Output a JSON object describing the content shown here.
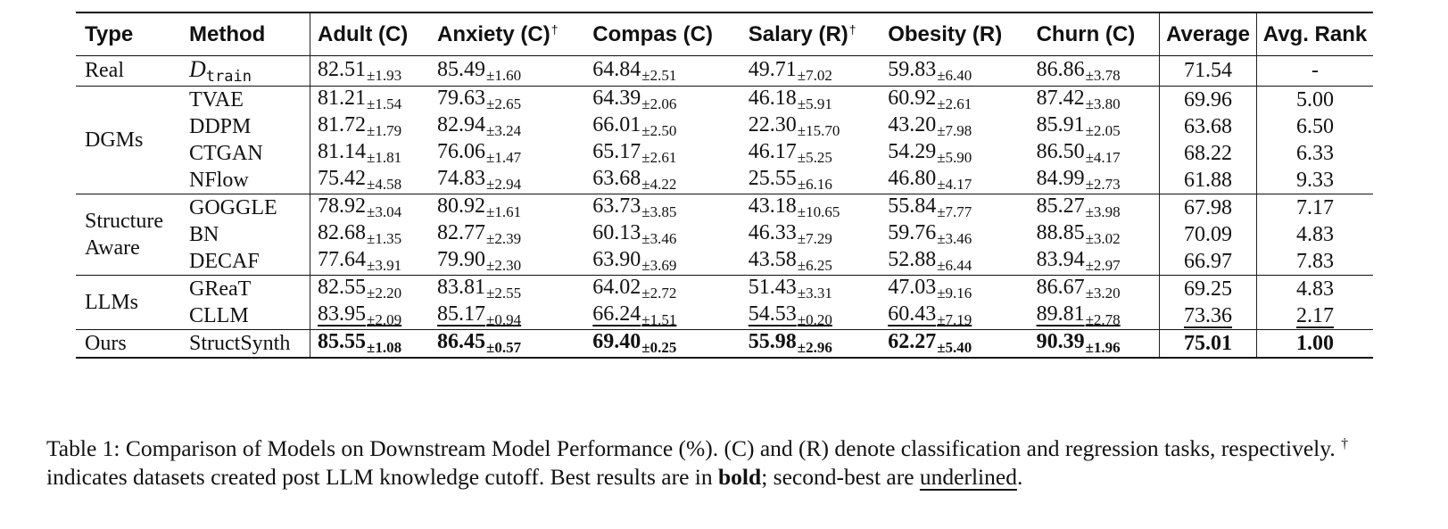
{
  "table": {
    "headers": {
      "type": "Type",
      "method": "Method",
      "datasets": [
        {
          "label": "Adult (C)",
          "dagger": ""
        },
        {
          "label": "Anxiety (C)",
          "dagger": "†"
        },
        {
          "label": "Compas (C)",
          "dagger": ""
        },
        {
          "label": "Salary (R)",
          "dagger": "†"
        },
        {
          "label": "Obesity (R)",
          "dagger": ""
        },
        {
          "label": "Churn (C)",
          "dagger": ""
        }
      ],
      "average": "Average",
      "avg_rank": "Avg. Rank"
    },
    "groups": [
      {
        "type": "Real",
        "rows": [
          {
            "method": "D",
            "method_sub": "train",
            "scores": [
              {
                "v": "82.51",
                "sd": "±1.93"
              },
              {
                "v": "85.49",
                "sd": "±1.60"
              },
              {
                "v": "64.84",
                "sd": "±2.51"
              },
              {
                "v": "49.71",
                "sd": "±7.02"
              },
              {
                "v": "59.83",
                "sd": "±6.40"
              },
              {
                "v": "86.86",
                "sd": "±3.78"
              }
            ],
            "average": "71.54",
            "rank": "-"
          }
        ]
      },
      {
        "type": "DGMs",
        "rows": [
          {
            "method": "TVAE",
            "scores": [
              {
                "v": "81.21",
                "sd": "±1.54"
              },
              {
                "v": "79.63",
                "sd": "±2.65"
              },
              {
                "v": "64.39",
                "sd": "±2.06"
              },
              {
                "v": "46.18",
                "sd": "±5.91"
              },
              {
                "v": "60.92",
                "sd": "±2.61"
              },
              {
                "v": "87.42",
                "sd": "±3.80"
              }
            ],
            "average": "69.96",
            "rank": "5.00"
          },
          {
            "method": "DDPM",
            "scores": [
              {
                "v": "81.72",
                "sd": "±1.79"
              },
              {
                "v": "82.94",
                "sd": "±3.24"
              },
              {
                "v": "66.01",
                "sd": "±2.50"
              },
              {
                "v": "22.30",
                "sd": "±15.70"
              },
              {
                "v": "43.20",
                "sd": "±7.98"
              },
              {
                "v": "85.91",
                "sd": "±2.05"
              }
            ],
            "average": "63.68",
            "rank": "6.50"
          },
          {
            "method": "CTGAN",
            "scores": [
              {
                "v": "81.14",
                "sd": "±1.81"
              },
              {
                "v": "76.06",
                "sd": "±1.47"
              },
              {
                "v": "65.17",
                "sd": "±2.61"
              },
              {
                "v": "46.17",
                "sd": "±5.25"
              },
              {
                "v": "54.29",
                "sd": "±5.90"
              },
              {
                "v": "86.50",
                "sd": "±4.17"
              }
            ],
            "average": "68.22",
            "rank": "6.33"
          },
          {
            "method": "NFlow",
            "scores": [
              {
                "v": "75.42",
                "sd": "±4.58"
              },
              {
                "v": "74.83",
                "sd": "±2.94"
              },
              {
                "v": "63.68",
                "sd": "±4.22"
              },
              {
                "v": "25.55",
                "sd": "±6.16"
              },
              {
                "v": "46.80",
                "sd": "±4.17"
              },
              {
                "v": "84.99",
                "sd": "±2.73"
              }
            ],
            "average": "61.88",
            "rank": "9.33"
          }
        ]
      },
      {
        "type": "Structure Aware",
        "type_lines": [
          "Structure",
          "Aware"
        ],
        "rows": [
          {
            "method": "GOGGLE",
            "scores": [
              {
                "v": "78.92",
                "sd": "±3.04"
              },
              {
                "v": "80.92",
                "sd": "±1.61"
              },
              {
                "v": "63.73",
                "sd": "±3.85"
              },
              {
                "v": "43.18",
                "sd": "±10.65"
              },
              {
                "v": "55.84",
                "sd": "±7.77"
              },
              {
                "v": "85.27",
                "sd": "±3.98"
              }
            ],
            "average": "67.98",
            "rank": "7.17"
          },
          {
            "method": "BN",
            "scores": [
              {
                "v": "82.68",
                "sd": "±1.35"
              },
              {
                "v": "82.77",
                "sd": "±2.39"
              },
              {
                "v": "60.13",
                "sd": "±3.46"
              },
              {
                "v": "46.33",
                "sd": "±7.29"
              },
              {
                "v": "59.76",
                "sd": "±3.46"
              },
              {
                "v": "88.85",
                "sd": "±3.02"
              }
            ],
            "average": "70.09",
            "rank": "4.83"
          },
          {
            "method": "DECAF",
            "scores": [
              {
                "v": "77.64",
                "sd": "±3.91"
              },
              {
                "v": "79.90",
                "sd": "±2.30"
              },
              {
                "v": "63.90",
                "sd": "±3.69"
              },
              {
                "v": "43.58",
                "sd": "±6.25"
              },
              {
                "v": "52.88",
                "sd": "±6.44"
              },
              {
                "v": "83.94",
                "sd": "±2.97"
              }
            ],
            "average": "66.97",
            "rank": "7.83"
          }
        ]
      },
      {
        "type": "LLMs",
        "rows": [
          {
            "method": "GReaT",
            "scores": [
              {
                "v": "82.55",
                "sd": "±2.20"
              },
              {
                "v": "83.81",
                "sd": "±2.55"
              },
              {
                "v": "64.02",
                "sd": "±2.72"
              },
              {
                "v": "51.43",
                "sd": "±3.31"
              },
              {
                "v": "47.03",
                "sd": "±9.16"
              },
              {
                "v": "86.67",
                "sd": "±3.20"
              }
            ],
            "average": "69.25",
            "rank": "4.83"
          },
          {
            "method": "CLLM",
            "style": "underline",
            "scores": [
              {
                "v": "83.95",
                "sd": "±2.09"
              },
              {
                "v": "85.17",
                "sd": "±0.94"
              },
              {
                "v": "66.24",
                "sd": "±1.51"
              },
              {
                "v": "54.53",
                "sd": "±0.20"
              },
              {
                "v": "60.43",
                "sd": "±7.19"
              },
              {
                "v": "89.81",
                "sd": "±2.78"
              }
            ],
            "average": "73.36",
            "rank": "2.17"
          }
        ]
      },
      {
        "type": "Ours",
        "rows": [
          {
            "method": "StructSynth",
            "style": "bold",
            "scores": [
              {
                "v": "85.55",
                "sd": "±1.08"
              },
              {
                "v": "86.45",
                "sd": "±0.57"
              },
              {
                "v": "69.40",
                "sd": "±0.25"
              },
              {
                "v": "55.98",
                "sd": "±2.96"
              },
              {
                "v": "62.27",
                "sd": "±5.40"
              },
              {
                "v": "90.39",
                "sd": "±1.96"
              }
            ],
            "average": "75.01",
            "rank": "1.00"
          }
        ]
      }
    ]
  },
  "caption": {
    "part1": "Table 1: Comparison of Models on Downstream Model Performance (%). (C) and (R) denote classification and regression tasks, respectively.",
    "dagger": "†",
    "part2": " indicates datasets created post LLM knowledge cutoff. Best results are in ",
    "bold_word": "bold",
    "part3": "; second-best are ",
    "underline_word": "underlined",
    "part4": "."
  }
}
